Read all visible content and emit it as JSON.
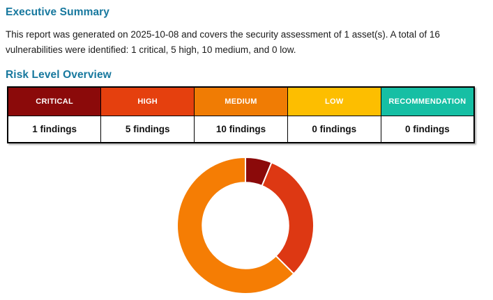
{
  "page": {
    "title": "Executive Summary",
    "summary_text": "This report was generated on 2025-10-08 and covers the security assessment of 1 asset(s). A total of 16 vulnerabilities were identified: 1 critical, 5 high, 10 medium, and 0 low.",
    "section_title": "Risk Level Overview",
    "report_date": "2025-10-08",
    "asset_count": "1",
    "total_vulnerabilities": "16"
  },
  "risk_table": {
    "columns": [
      {
        "label": "CRITICAL",
        "count_label": "1 findings",
        "color": "#8B0A0A"
      },
      {
        "label": "HIGH",
        "count_label": "5 findings",
        "color": "#E5400E"
      },
      {
        "label": "MEDIUM",
        "count_label": "10 findings",
        "color": "#F07C04"
      },
      {
        "label": "LOW",
        "count_label": "0 findings",
        "color": "#FDBE00"
      },
      {
        "label": "RECOMMENDATION",
        "count_label": "0 findings",
        "color": "#16BFA4"
      }
    ]
  },
  "chart_data": {
    "type": "pie",
    "subtype": "donut",
    "title": "",
    "categories": [
      "Critical",
      "High",
      "Medium",
      "Low"
    ],
    "values": [
      1,
      5,
      10,
      0
    ],
    "colors": [
      "#8B0A0A",
      "#DD3813",
      "#F57D04",
      "#FDBE00"
    ],
    "total": 16,
    "legend": "none",
    "start_angle_deg": 0,
    "direction": "clockwise",
    "cutout_ratio": 0.63,
    "segment_border_color": "#FFFFFF",
    "segment_border_width": 2
  },
  "theme": {
    "heading_color": "#17789E",
    "table_border_color": "#000000",
    "header_text_color": "#FFFFFF",
    "background_color": "#FFFFFF"
  }
}
